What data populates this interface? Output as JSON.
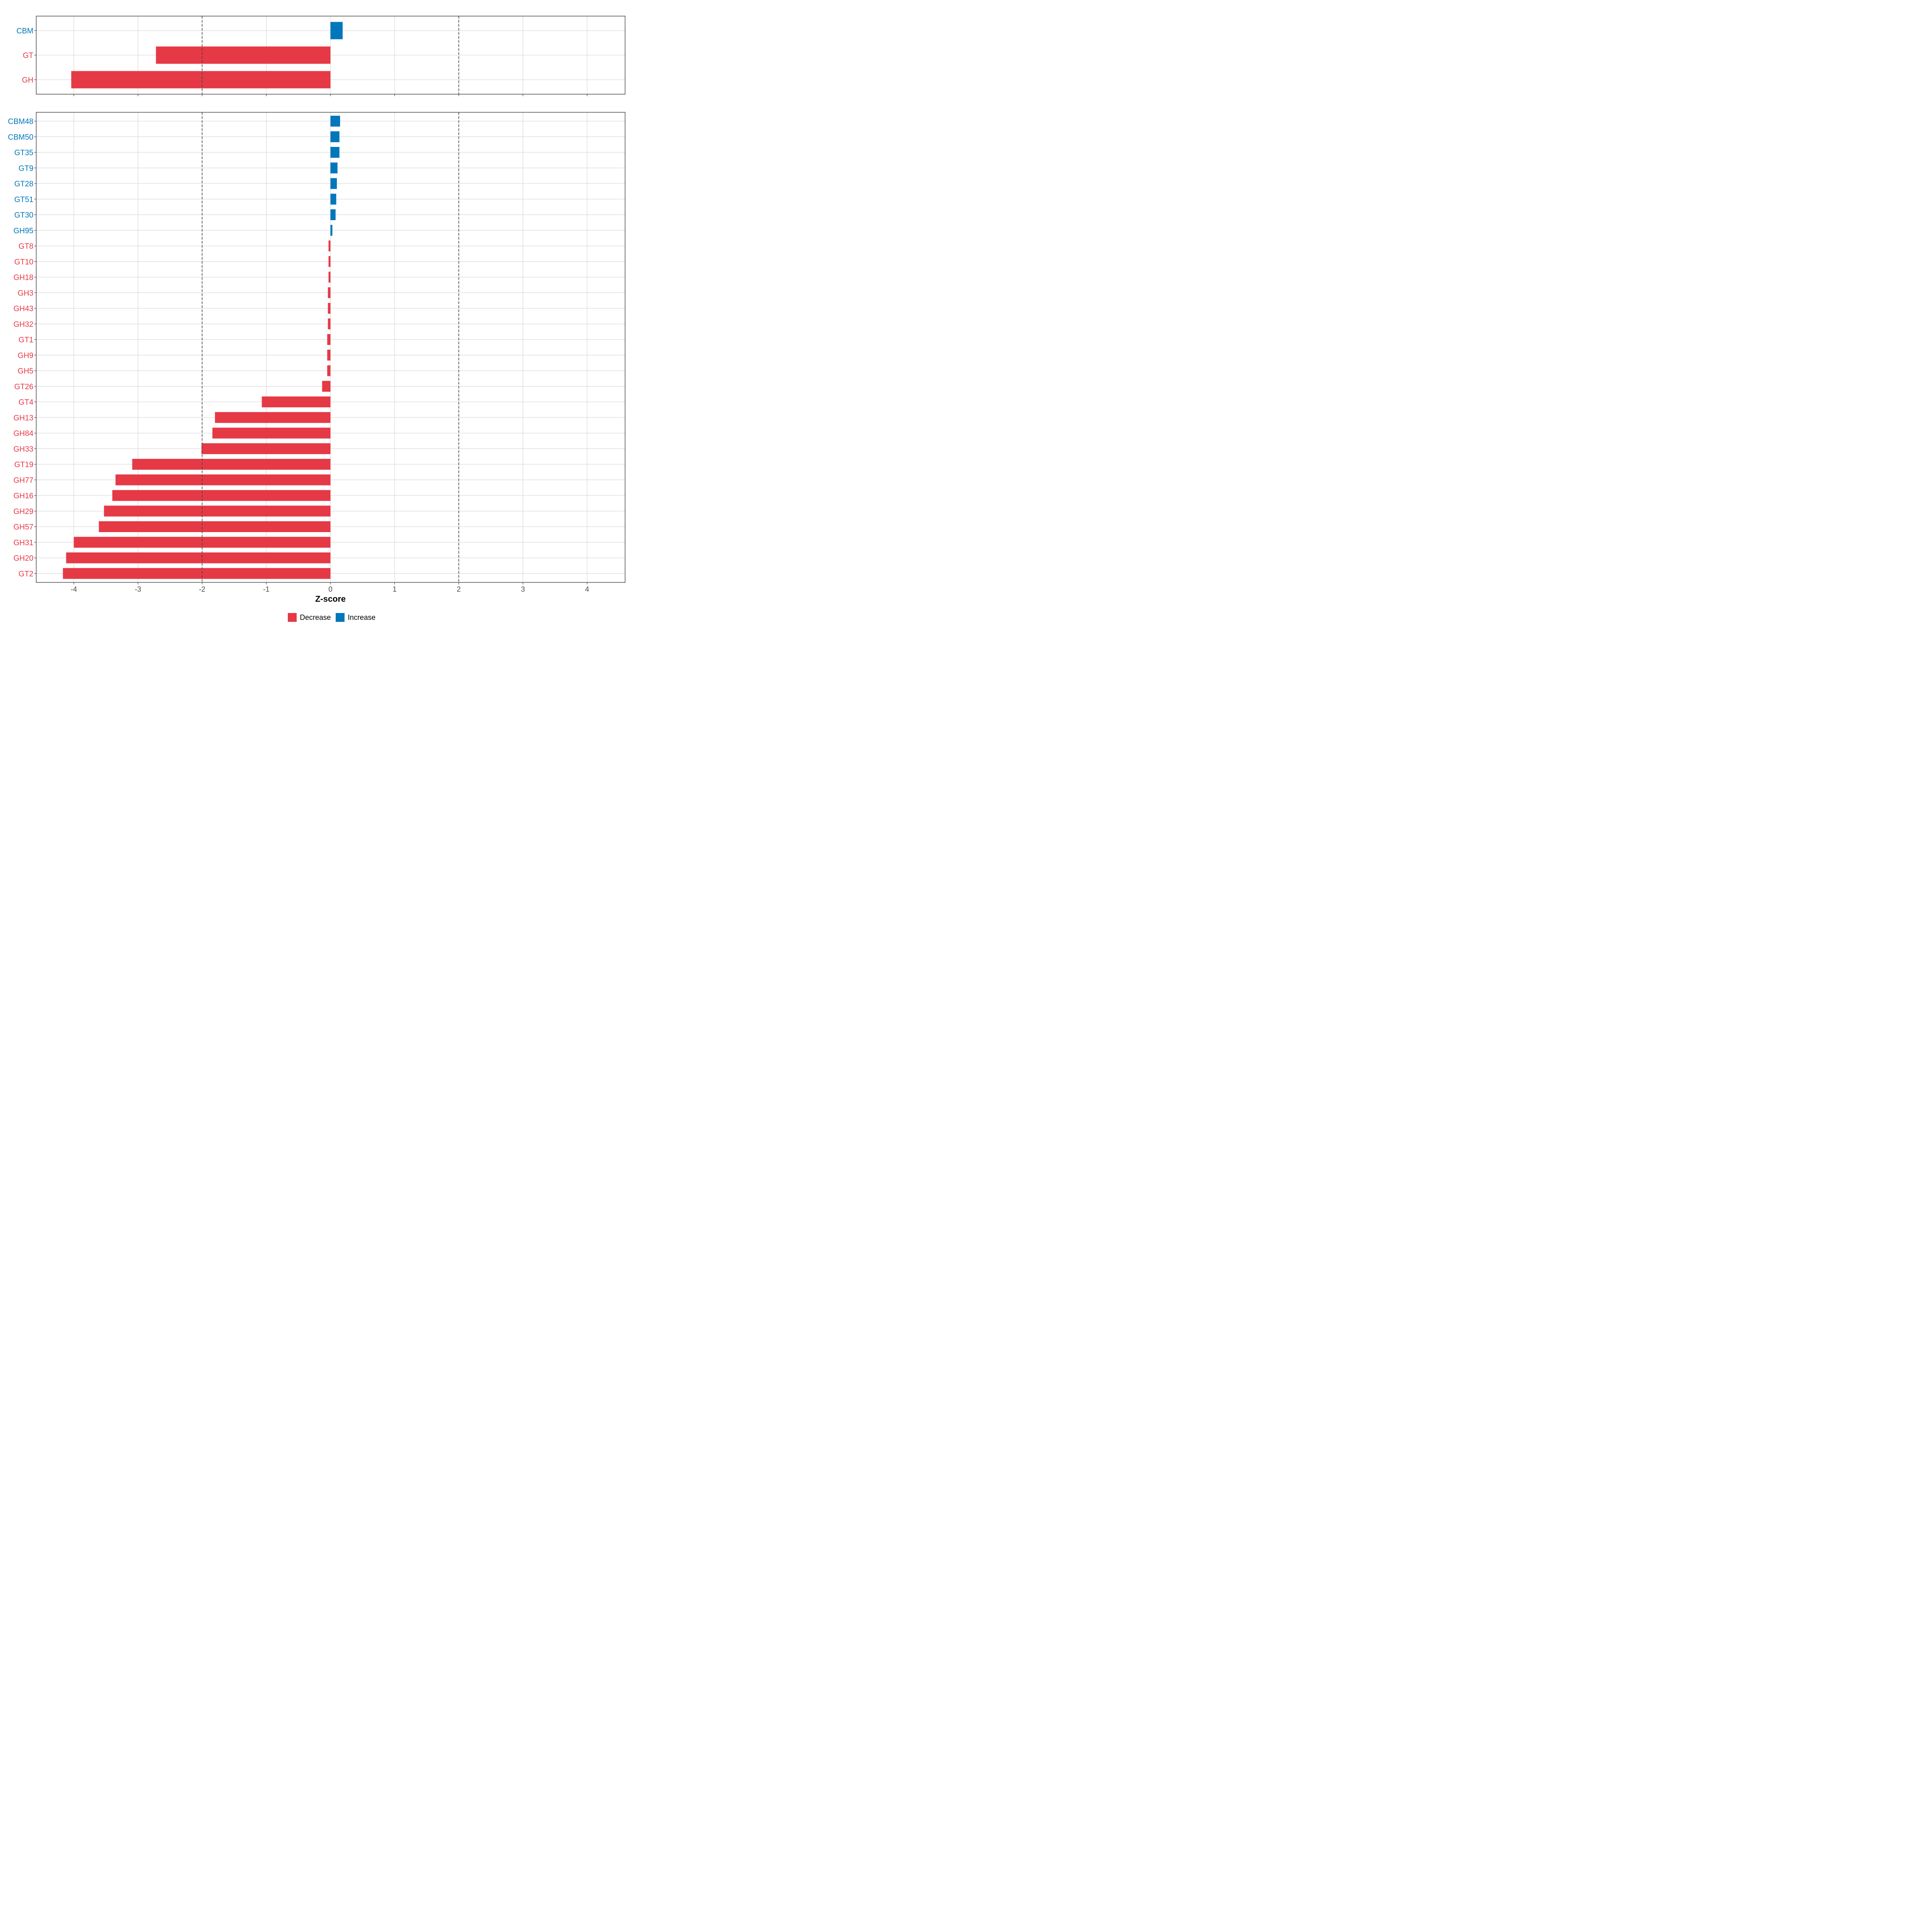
{
  "colors": {
    "decrease": "#E63946",
    "increase": "#0077BB",
    "grid": "#D9D9D9",
    "panel_border": "#333333",
    "dashed": "#444444",
    "tick_text": "#4D4D4D"
  },
  "chart_data": [
    {
      "type": "bar",
      "orientation": "horizontal",
      "panel": "top",
      "categories": [
        "CBM",
        "GT",
        "GH"
      ],
      "values": [
        0.19,
        -2.72,
        -4.04
      ],
      "directions": [
        "Increase",
        "Decrease",
        "Decrease"
      ],
      "xlim": [
        -4.6,
        4.6
      ],
      "xticks": [
        -4,
        -3,
        -2,
        -1,
        0,
        1,
        2,
        3,
        4
      ],
      "reference_lines": [
        -2,
        2
      ],
      "grid": true
    },
    {
      "type": "bar",
      "orientation": "horizontal",
      "panel": "bottom",
      "categories": [
        "CBM48",
        "CBM50",
        "GT35",
        "GT9",
        "GT28",
        "GT51",
        "GT30",
        "GH95",
        "GT8",
        "GT10",
        "GH18",
        "GH3",
        "GH43",
        "GH32",
        "GT1",
        "GH9",
        "GH5",
        "GT26",
        "GT4",
        "GH13",
        "GH84",
        "GH33",
        "GT19",
        "GH77",
        "GH16",
        "GH29",
        "GH57",
        "GH31",
        "GH20",
        "GT2"
      ],
      "values": [
        0.15,
        0.14,
        0.14,
        0.11,
        0.1,
        0.09,
        0.08,
        0.03,
        -0.03,
        -0.03,
        -0.03,
        -0.04,
        -0.04,
        -0.04,
        -0.05,
        -0.05,
        -0.05,
        -0.13,
        -1.07,
        -1.8,
        -1.84,
        -2.01,
        -3.09,
        -3.35,
        -3.4,
        -3.53,
        -3.61,
        -4.0,
        -4.12,
        -4.17
      ],
      "directions": [
        "Increase",
        "Increase",
        "Increase",
        "Increase",
        "Increase",
        "Increase",
        "Increase",
        "Increase",
        "Decrease",
        "Decrease",
        "Decrease",
        "Decrease",
        "Decrease",
        "Decrease",
        "Decrease",
        "Decrease",
        "Decrease",
        "Decrease",
        "Decrease",
        "Decrease",
        "Decrease",
        "Decrease",
        "Decrease",
        "Decrease",
        "Decrease",
        "Decrease",
        "Decrease",
        "Decrease",
        "Decrease",
        "Decrease"
      ],
      "xlim": [
        -4.6,
        4.6
      ],
      "xticks": [
        -4,
        -3,
        -2,
        -1,
        0,
        1,
        2,
        3,
        4
      ],
      "reference_lines": [
        -2,
        2
      ],
      "grid": true
    }
  ],
  "axis": {
    "xlabel": "Z-score"
  },
  "legend": {
    "position": "bottom",
    "items": [
      {
        "label": "Decrease",
        "color_key": "decrease"
      },
      {
        "label": "Increase",
        "color_key": "increase"
      }
    ]
  }
}
